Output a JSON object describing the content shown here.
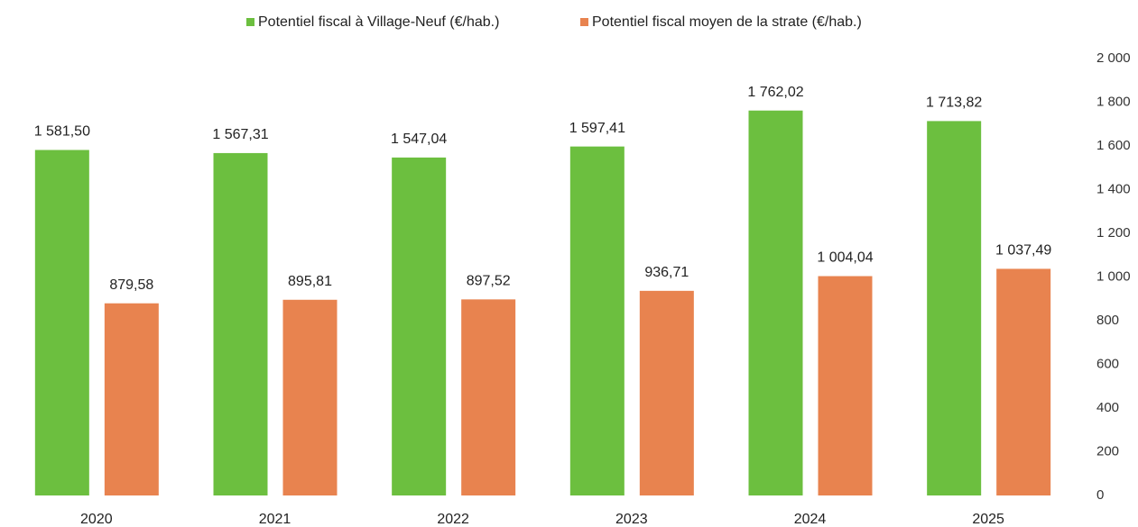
{
  "chart_data": {
    "type": "bar",
    "categories": [
      "2020",
      "2021",
      "2022",
      "2023",
      "2024",
      "2025"
    ],
    "series": [
      {
        "name": "Potentiel fiscal à Village-Neuf (€/hab.)",
        "color": "#6cbf3f",
        "values": [
          1581.5,
          1567.31,
          1547.04,
          1597.41,
          1762.02,
          1713.82
        ],
        "value_labels": [
          "1 581,50",
          "1 567,31",
          "1 547,04",
          "1 597,41",
          "1 762,02",
          "1 713,82"
        ]
      },
      {
        "name": "Potentiel fiscal moyen de la strate (€/hab.)",
        "color": "#e8834f",
        "values": [
          879.58,
          895.81,
          897.52,
          936.71,
          1004.04,
          1037.49
        ],
        "value_labels": [
          "879,58",
          "895,81",
          "897,52",
          "936,71",
          "1 004,04",
          "1 037,49"
        ]
      }
    ],
    "ylim": [
      0,
      2000
    ],
    "yticks": [
      0,
      200,
      400,
      600,
      800,
      {
        "value": 1000,
        "label": "1 000"
      },
      {
        "value": 1200,
        "label": "1 200"
      },
      {
        "value": 1400,
        "label": "1 400"
      },
      {
        "value": 1600,
        "label": "1 600"
      },
      {
        "value": 1800,
        "label": "1 800"
      },
      {
        "value": 2000,
        "label": "2 000"
      }
    ],
    "y_axis_side": "right"
  }
}
